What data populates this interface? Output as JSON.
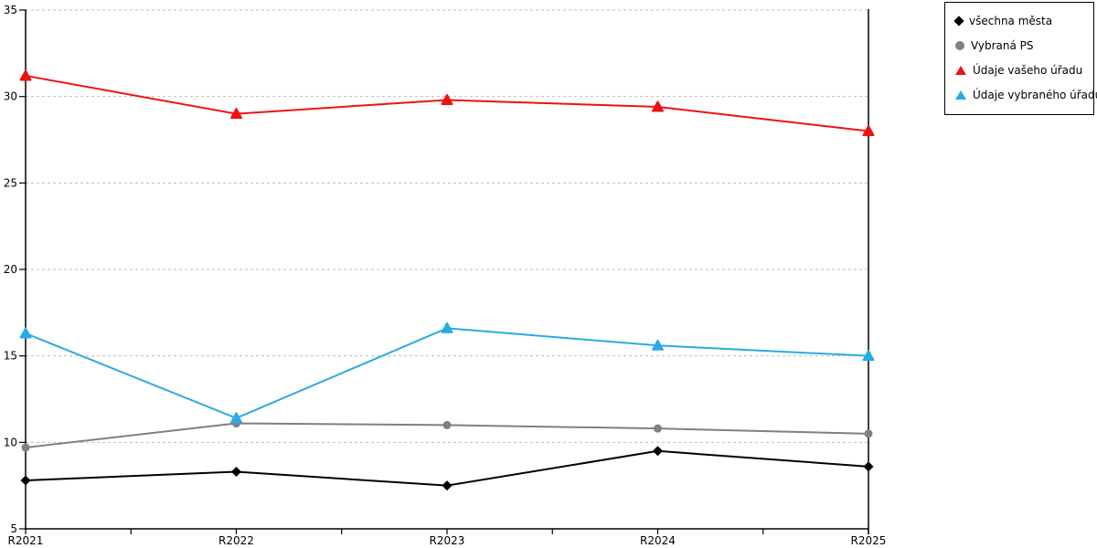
{
  "chart_data": {
    "type": "line",
    "categories": [
      "R2021",
      "R2022",
      "R2023",
      "R2024",
      "R2025"
    ],
    "series": [
      {
        "name": "všechna města",
        "color": "#000000",
        "marker": "diamond",
        "values": [
          7.8,
          8.3,
          7.5,
          9.5,
          8.6
        ]
      },
      {
        "name": "Vybraná PS",
        "color": "#808080",
        "marker": "circle",
        "values": [
          9.7,
          11.1,
          11.0,
          10.8,
          10.5
        ]
      },
      {
        "name": "Údaje vašeho úřadu",
        "color": "#ee1111",
        "marker": "triangle",
        "values": [
          31.2,
          29.0,
          29.8,
          29.4,
          28.0
        ]
      },
      {
        "name": "Údaje vybraného úřadu",
        "color": "#29abe2",
        "marker": "triangle",
        "values": [
          16.3,
          11.4,
          16.6,
          15.6,
          15.0
        ]
      }
    ],
    "ylim": [
      5,
      35
    ],
    "y_ticks": [
      5,
      10,
      15,
      20,
      25,
      30,
      35
    ],
    "grid": "horizontal-dashed",
    "gridline_color": "#bdbdbd",
    "axis_color": "#000000",
    "background": "#ffffff",
    "legend_position": "top-right-outside"
  }
}
